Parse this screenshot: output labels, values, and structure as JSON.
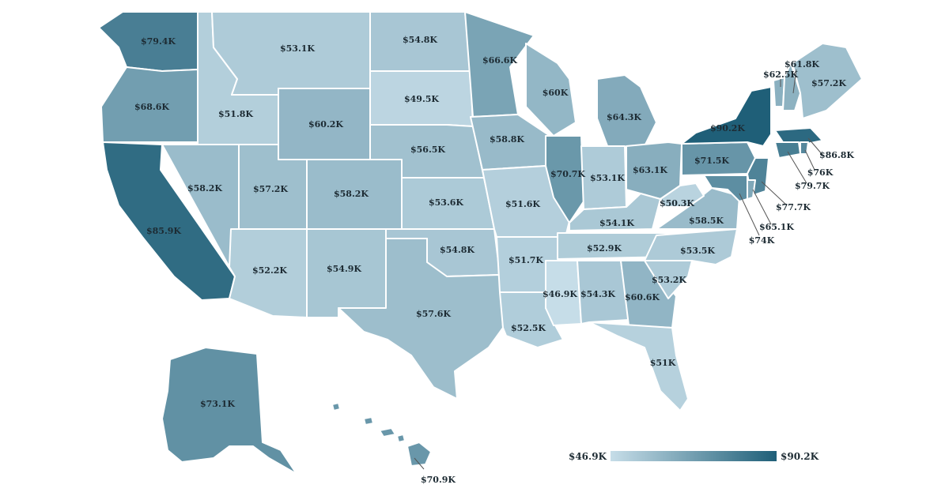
{
  "colors": {
    "min": "#c6dde8",
    "max": "#1f5f78",
    "border": "#ffffff",
    "text": "#1d2b33"
  },
  "legend": {
    "min_label": "$46.9K",
    "max_label": "$90.2K"
  },
  "states": [
    {
      "name": "Washington",
      "value": 79.4,
      "label": "$79.4K"
    },
    {
      "name": "Oregon",
      "value": 68.6,
      "label": "$68.6K"
    },
    {
      "name": "California",
      "value": 85.9,
      "label": "$85.9K"
    },
    {
      "name": "Nevada",
      "value": 58.2,
      "label": "$58.2K"
    },
    {
      "name": "Idaho",
      "value": 51.8,
      "label": "$51.8K"
    },
    {
      "name": "Montana",
      "value": 53.1,
      "label": "$53.1K"
    },
    {
      "name": "Wyoming",
      "value": 60.2,
      "label": "$60.2K"
    },
    {
      "name": "Utah",
      "value": 57.2,
      "label": "$57.2K"
    },
    {
      "name": "Arizona",
      "value": 52.2,
      "label": "$52.2K"
    },
    {
      "name": "Colorado",
      "value": 58.2,
      "label": "$58.2K"
    },
    {
      "name": "New Mexico",
      "value": 54.9,
      "label": "$54.9K"
    },
    {
      "name": "North Dakota",
      "value": 54.8,
      "label": "$54.8K"
    },
    {
      "name": "South Dakota",
      "value": 49.5,
      "label": "$49.5K"
    },
    {
      "name": "Nebraska",
      "value": 56.5,
      "label": "$56.5K"
    },
    {
      "name": "Kansas",
      "value": 53.6,
      "label": "$53.6K"
    },
    {
      "name": "Oklahoma",
      "value": 54.8,
      "label": "$54.8K"
    },
    {
      "name": "Texas",
      "value": 57.6,
      "label": "$57.6K"
    },
    {
      "name": "Minnesota",
      "value": 66.6,
      "label": "$66.6K"
    },
    {
      "name": "Iowa",
      "value": 58.8,
      "label": "$58.8K"
    },
    {
      "name": "Missouri",
      "value": 51.6,
      "label": "$51.6K"
    },
    {
      "name": "Arkansas",
      "value": 51.7,
      "label": "$51.7K"
    },
    {
      "name": "Louisiana",
      "value": 52.5,
      "label": "$52.5K"
    },
    {
      "name": "Wisconsin",
      "value": 60.0,
      "label": "$60K"
    },
    {
      "name": "Illinois",
      "value": 70.7,
      "label": "$70.7K"
    },
    {
      "name": "Michigan",
      "value": 64.3,
      "label": "$64.3K"
    },
    {
      "name": "Indiana",
      "value": 53.1,
      "label": "$53.1K"
    },
    {
      "name": "Ohio",
      "value": 63.1,
      "label": "$63.1K"
    },
    {
      "name": "Kentucky",
      "value": 54.1,
      "label": "$54.1K"
    },
    {
      "name": "Tennessee",
      "value": 52.9,
      "label": "$52.9K"
    },
    {
      "name": "Mississippi",
      "value": 46.9,
      "label": "$46.9K"
    },
    {
      "name": "Alabama",
      "value": 54.3,
      "label": "$54.3K"
    },
    {
      "name": "Georgia",
      "value": 60.6,
      "label": "$60.6K"
    },
    {
      "name": "Florida",
      "value": 51.0,
      "label": "$51K"
    },
    {
      "name": "South Carolina",
      "value": 53.2,
      "label": "$53.2K"
    },
    {
      "name": "North Carolina",
      "value": 53.5,
      "label": "$53.5K"
    },
    {
      "name": "Virginia",
      "value": 58.5,
      "label": "$58.5K"
    },
    {
      "name": "West Virginia",
      "value": 50.3,
      "label": "$50.3K"
    },
    {
      "name": "Pennsylvania",
      "value": 71.5,
      "label": "$71.5K"
    },
    {
      "name": "New York",
      "value": 90.2,
      "label": "$90.2K"
    },
    {
      "name": "Vermont",
      "value": 62.5,
      "label": "$62.5K"
    },
    {
      "name": "New Hampshire",
      "value": 61.8,
      "label": "$61.8K"
    },
    {
      "name": "Maine",
      "value": 57.2,
      "label": "$57.2K"
    },
    {
      "name": "Massachusetts",
      "value": 86.8,
      "label": "$86.8K"
    },
    {
      "name": "Rhode Island",
      "value": 76.0,
      "label": "$76K"
    },
    {
      "name": "Connecticut",
      "value": 79.7,
      "label": "$79.7K"
    },
    {
      "name": "New Jersey",
      "value": 77.7,
      "label": "$77.7K"
    },
    {
      "name": "Delaware",
      "value": 65.1,
      "label": "$65.1K"
    },
    {
      "name": "Maryland",
      "value": 74.0,
      "label": "$74K"
    },
    {
      "name": "Alaska",
      "value": 73.1,
      "label": "$73.1K"
    },
    {
      "name": "Hawaii",
      "value": 70.9,
      "label": "$70.9K"
    }
  ]
}
